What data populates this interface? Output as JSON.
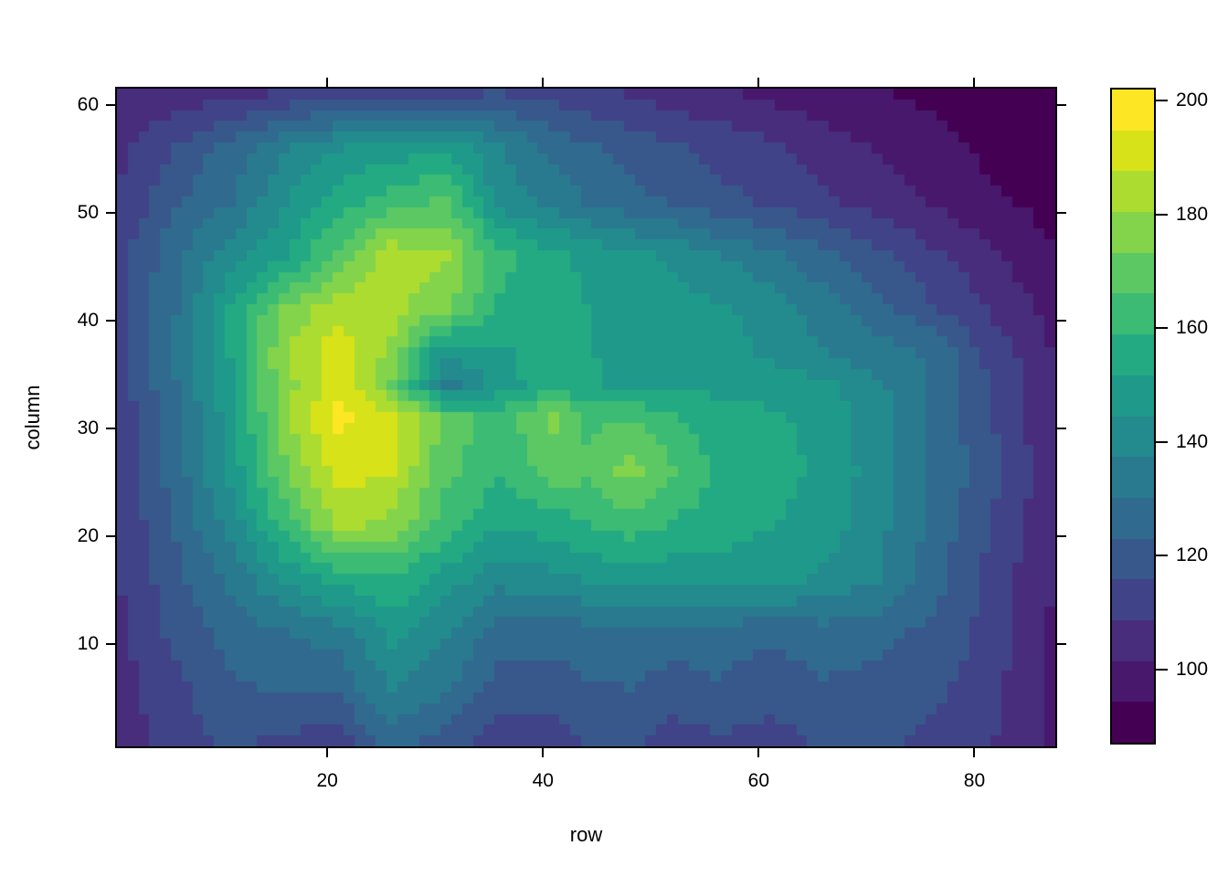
{
  "chart_data": {
    "type": "heatmap",
    "title": "",
    "xlabel": "row",
    "ylabel": "column",
    "x_ticks": [
      20,
      40,
      60,
      80
    ],
    "y_ticks": [
      10,
      20,
      30,
      40,
      50,
      60
    ],
    "x_range": [
      1,
      87
    ],
    "y_range": [
      1,
      61
    ],
    "n_x": 87,
    "n_y": 61,
    "z_range": [
      88,
      196
    ],
    "palette": "viridis, 16 discrete levels",
    "legend_position": "right",
    "grid": false,
    "levels": {
      "breaks": [
        87.1,
        94.25,
        101.43,
        108.61,
        115.79,
        122.96,
        130.14,
        137.32,
        144.5,
        151.68,
        158.86,
        166.04,
        173.22,
        180.39,
        187.57,
        194.75,
        201.93
      ],
      "colors": [
        "#440154",
        "#48186C",
        "#472D7B",
        "#404387",
        "#38588C",
        "#306A8E",
        "#297A8E",
        "#238A8D",
        "#1F9A8A",
        "#24AA83",
        "#3CBB75",
        "#5CC863",
        "#84D44B",
        "#ADDC30",
        "#D8E219",
        "#FDE725"
      ]
    },
    "colorbar_tick_labels": [
      100,
      120,
      140,
      160,
      180,
      200
    ],
    "x_samples": [
      1,
      6,
      11,
      16,
      21,
      26,
      31,
      36,
      41,
      44,
      48,
      52,
      56,
      61,
      66,
      71,
      76,
      81,
      87
    ],
    "y_samples": [
      1,
      6,
      11,
      16,
      21,
      26,
      31,
      34,
      37,
      41,
      46,
      51,
      56,
      61
    ],
    "z": [
      [
        105,
        112,
        118,
        114,
        113,
        126,
        120,
        112,
        112,
        117,
        118,
        112,
        115,
        113,
        117,
        118,
        114,
        110,
        100
      ],
      [
        106,
        114,
        122,
        124,
        125,
        138,
        131,
        120,
        120,
        122,
        123,
        120,
        122,
        119,
        122,
        121,
        118,
        112,
        100
      ],
      [
        108,
        118,
        126,
        130,
        133,
        147,
        138,
        126,
        125,
        127,
        128,
        126,
        127,
        124,
        127,
        125,
        121,
        114,
        101
      ],
      [
        109,
        121,
        132,
        145,
        155,
        158,
        148,
        140,
        142,
        145,
        148,
        147,
        148,
        147,
        143,
        138,
        127,
        114,
        102
      ],
      [
        110,
        124,
        140,
        162,
        182,
        178,
        162,
        152,
        155,
        158,
        162,
        158,
        155,
        152,
        148,
        140,
        128,
        117,
        103
      ],
      [
        111,
        127,
        146,
        172,
        191,
        188,
        168,
        160,
        170,
        168,
        176,
        167,
        158,
        155,
        150,
        141,
        130,
        119,
        105
      ],
      [
        112,
        129,
        148,
        178,
        196,
        190,
        171,
        161,
        175,
        164,
        166,
        160,
        155,
        153,
        149,
        140,
        129,
        118,
        102
      ],
      [
        113,
        130,
        151,
        177,
        193,
        172,
        134,
        148,
        157,
        153,
        150,
        150,
        150,
        149,
        146,
        139,
        130,
        117,
        104
      ],
      [
        114,
        131,
        152,
        180,
        192,
        178,
        145,
        150,
        155,
        152,
        150,
        150,
        148,
        143,
        138,
        133,
        129,
        114,
        102
      ],
      [
        115,
        130,
        152,
        174,
        185,
        183,
        174,
        158,
        155,
        152,
        150,
        148,
        146,
        142,
        134,
        126,
        117,
        109,
        99
      ],
      [
        114,
        128,
        142,
        150,
        168,
        185,
        181,
        161,
        153,
        150,
        146,
        143,
        138,
        132,
        125,
        118,
        110,
        104,
        95
      ],
      [
        110,
        122,
        130,
        144,
        156,
        163,
        168,
        142,
        135,
        130,
        126,
        122,
        118,
        115,
        110,
        105,
        101,
        96,
        92
      ],
      [
        107,
        116,
        126,
        136,
        144,
        148,
        150,
        138,
        128,
        124,
        120,
        117,
        114,
        110,
        105,
        101,
        98,
        93,
        90
      ],
      [
        104,
        105,
        106,
        110,
        112,
        113,
        115,
        116,
        113,
        111,
        108,
        105,
        103,
        100,
        97,
        95,
        92,
        90,
        88
      ]
    ],
    "z_note": "z[i][j] = value at (row = x_samples[j], column = y_samples[i]); the 87x61 cell grid is bilinearly interpolated from these samples and quantized to levels.breaks"
  }
}
